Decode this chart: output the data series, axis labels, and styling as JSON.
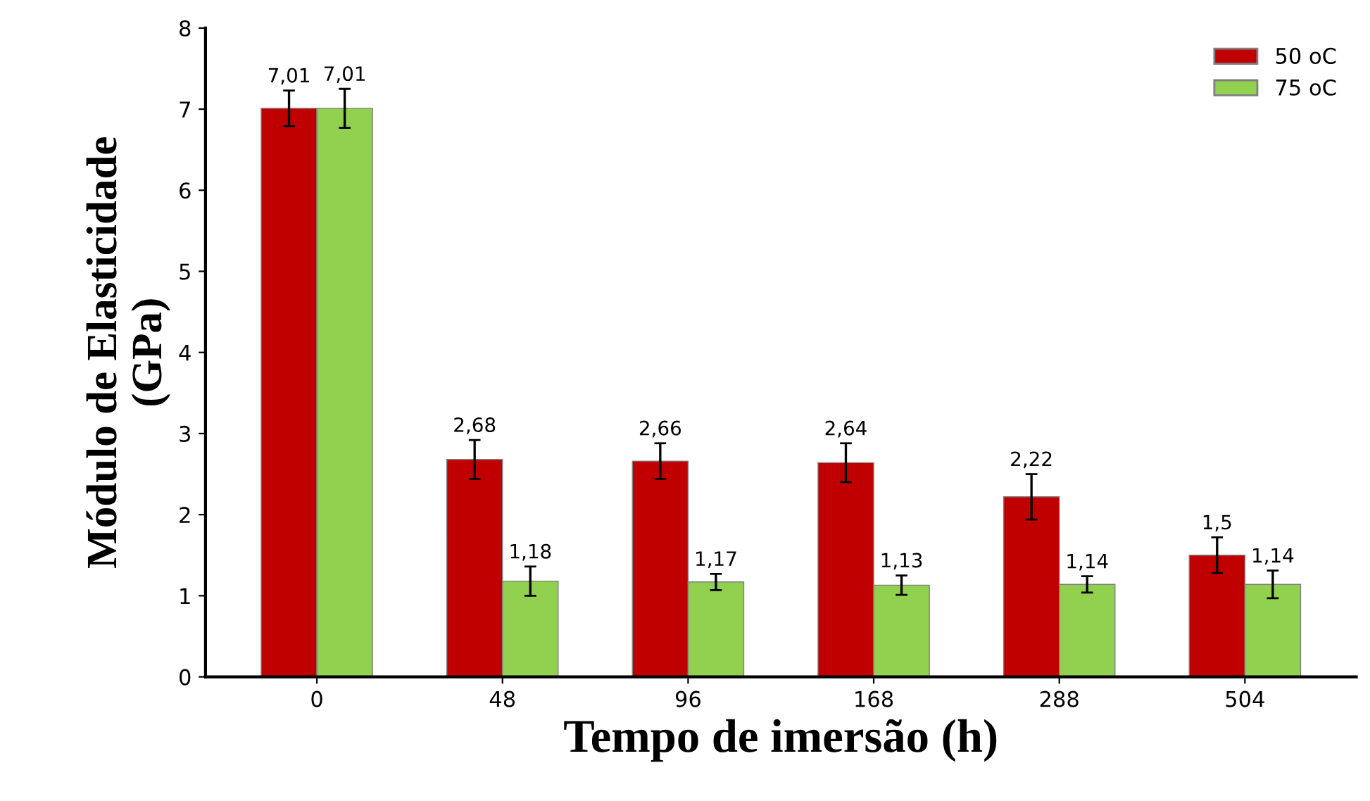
{
  "chart_data": {
    "type": "bar",
    "xlabel": "Tempo de imersão (h)",
    "ylabel": "Módulo de Elasticidade\n(GPa)",
    "categories": [
      "0",
      "48",
      "96",
      "168",
      "288",
      "504"
    ],
    "series": [
      {
        "name": "50 oC",
        "color": "#c00000",
        "values": [
          7.01,
          2.68,
          2.66,
          2.64,
          2.22,
          1.5
        ],
        "errors": [
          0.22,
          0.24,
          0.22,
          0.24,
          0.28,
          0.22
        ],
        "value_labels": [
          "7,01",
          "2,68",
          "2,66",
          "2,64",
          "2,22",
          "1,5"
        ]
      },
      {
        "name": "75 oC",
        "color": "#92d050",
        "values": [
          7.01,
          1.18,
          1.17,
          1.13,
          1.14,
          1.14
        ],
        "errors": [
          0.24,
          0.18,
          0.1,
          0.12,
          0.1,
          0.17
        ],
        "value_labels": [
          "7,01",
          "1,18",
          "1,17",
          "1,13",
          "1,14",
          "1,14"
        ]
      }
    ],
    "ylim": [
      0,
      8
    ],
    "yticks": [
      0,
      1,
      2,
      3,
      4,
      5,
      6,
      7,
      8
    ],
    "grid": false,
    "legend": "top right"
  }
}
